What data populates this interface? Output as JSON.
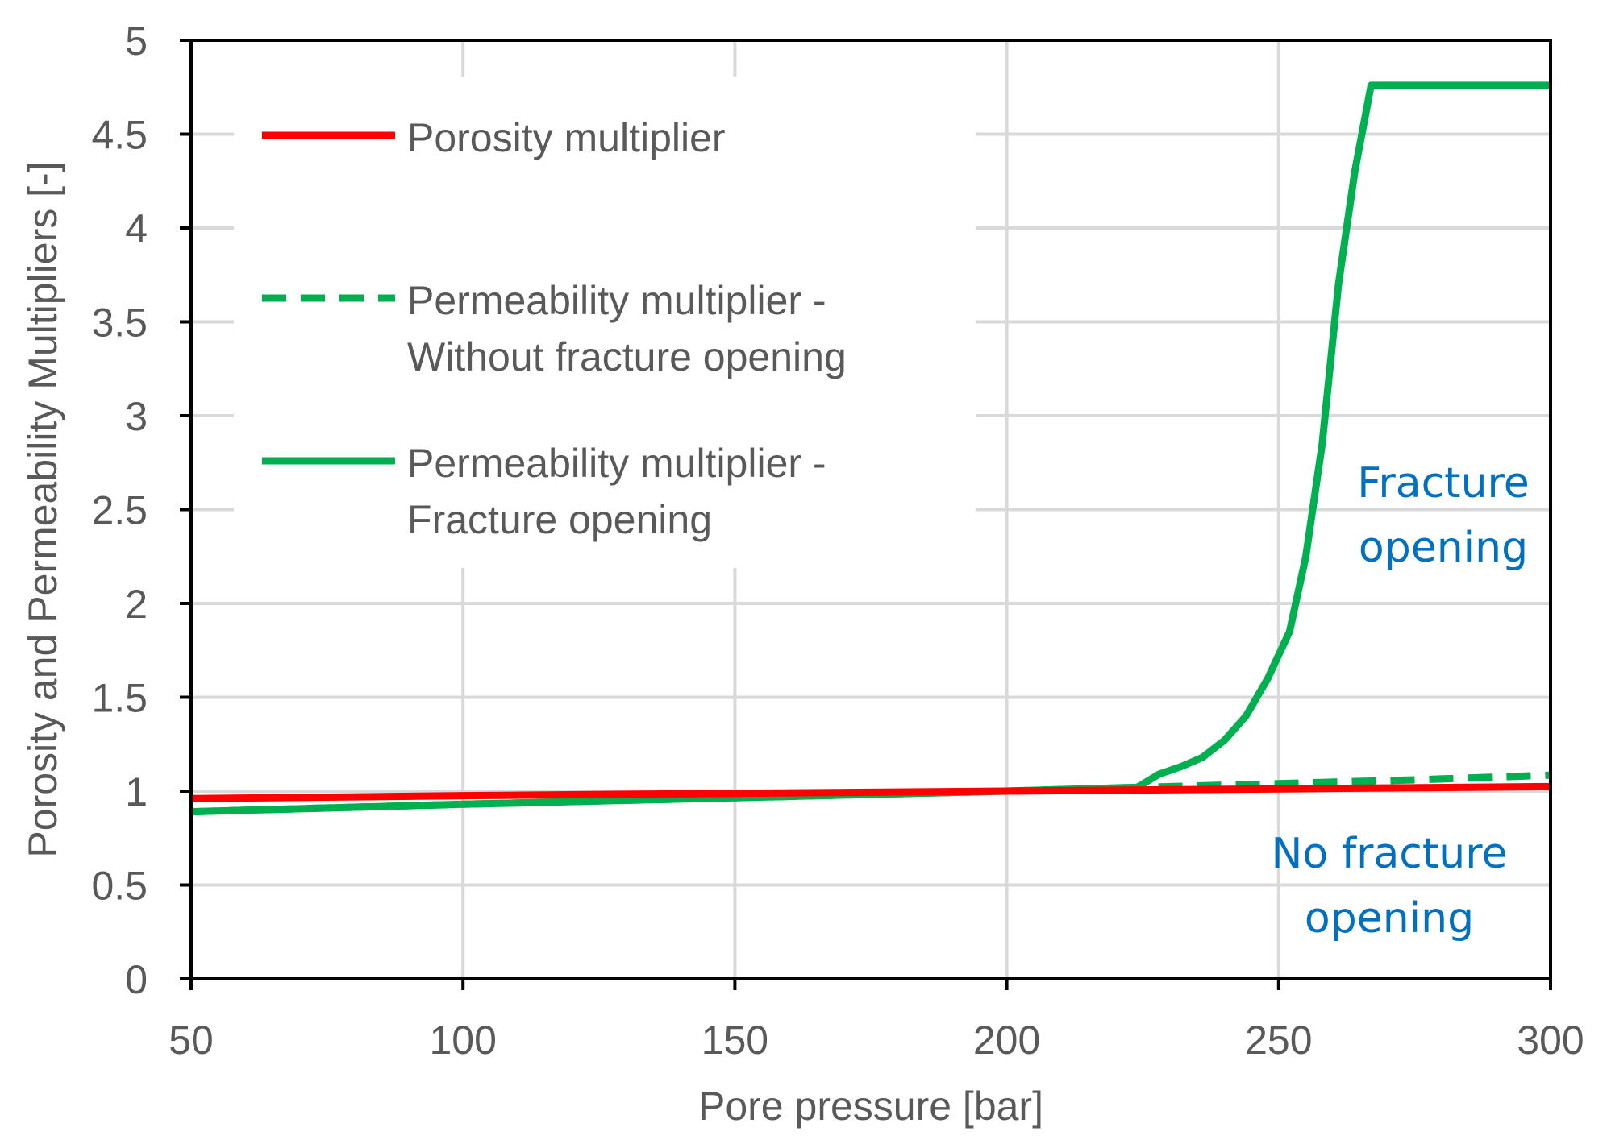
{
  "chart_data": {
    "type": "line",
    "xlabel": "Pore pressure [bar]",
    "ylabel": "Porosity and Permeability Multipliers [-]",
    "xlim": [
      50,
      300
    ],
    "ylim": [
      0,
      5
    ],
    "x_ticks": [
      "50",
      "100",
      "150",
      "200",
      "250",
      "300"
    ],
    "y_ticks": [
      "0",
      "0.5",
      "1",
      "1.5",
      "2",
      "2.5",
      "3",
      "3.5",
      "4",
      "4.5",
      "5"
    ],
    "grid": true,
    "legend_position": "top-left",
    "series": [
      {
        "name": "Porosity multiplier",
        "color": "#ff0000",
        "line_style": "solid",
        "x": [
          50,
          100,
          150,
          200,
          250,
          300
        ],
        "y": [
          0.96,
          0.976,
          0.988,
          1.0,
          1.012,
          1.024
        ]
      },
      {
        "name": "Permeability multiplier - Without fracture opening",
        "color": "#00b050",
        "line_style": "dashed",
        "x": [
          50,
          100,
          150,
          200,
          225,
          250,
          275,
          300
        ],
        "y": [
          0.89,
          0.93,
          0.965,
          1.0,
          1.02,
          1.04,
          1.06,
          1.085
        ]
      },
      {
        "name": "Permeability multiplier - Fracture opening",
        "color": "#00b050",
        "line_style": "solid",
        "x": [
          50,
          100,
          150,
          200,
          224,
          228,
          232,
          236,
          240,
          244,
          248,
          252,
          255,
          258,
          261,
          264,
          267,
          300
        ],
        "y": [
          0.89,
          0.93,
          0.965,
          1.0,
          1.02,
          1.09,
          1.13,
          1.18,
          1.27,
          1.4,
          1.6,
          1.85,
          2.25,
          2.85,
          3.7,
          4.3,
          4.76,
          4.76
        ]
      }
    ],
    "legend": [
      {
        "lines": [
          "Porosity multiplier"
        ]
      },
      {
        "lines": [
          "Permeability multiplier -",
          "Without fracture opening"
        ]
      },
      {
        "lines": [
          "Permeability multiplier -",
          "Fracture opening"
        ]
      }
    ],
    "annotations": [
      {
        "lines": [
          "Fracture",
          "opening"
        ],
        "color": "#0070c0"
      },
      {
        "lines": [
          "No fracture",
          "opening"
        ],
        "color": "#0070c0"
      }
    ]
  }
}
